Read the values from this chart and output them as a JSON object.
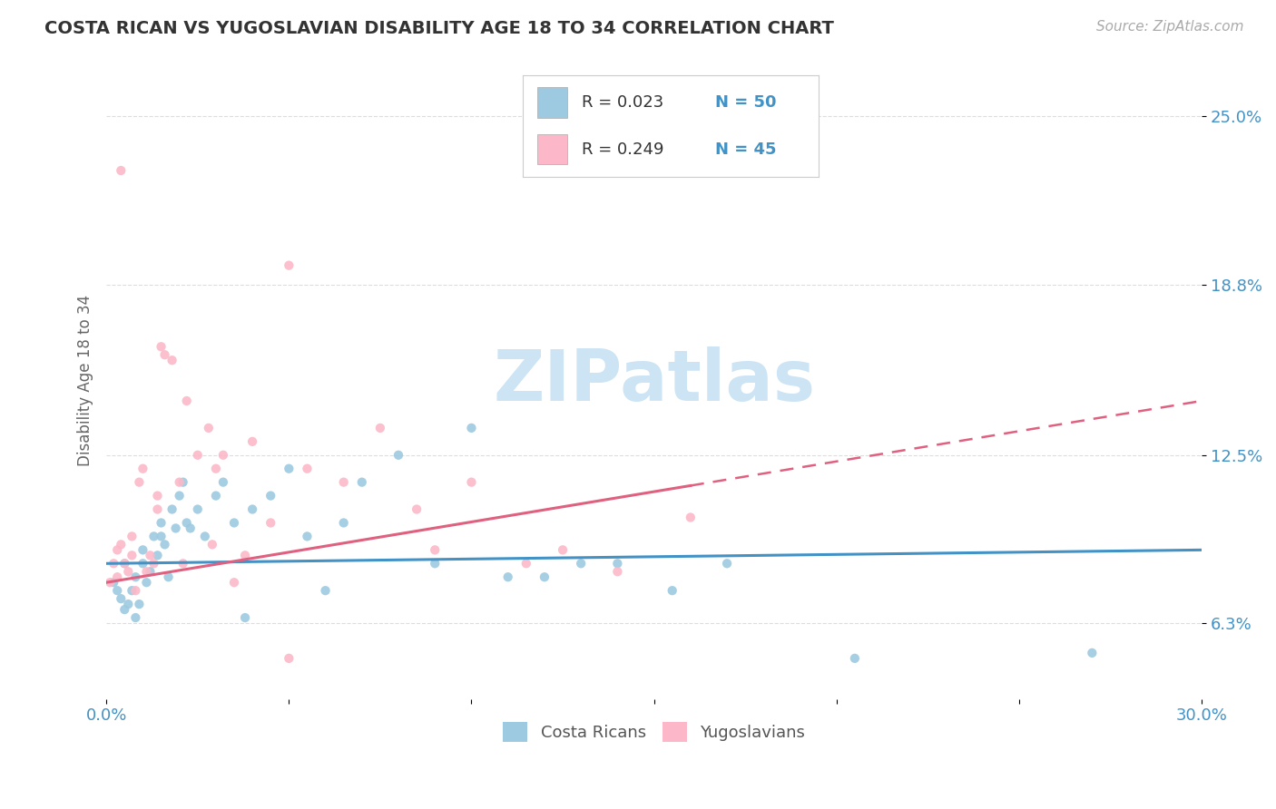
{
  "title": "COSTA RICAN VS YUGOSLAVIAN DISABILITY AGE 18 TO 34 CORRELATION CHART",
  "source": "Source: ZipAtlas.com",
  "ylabel": "Disability Age 18 to 34",
  "xlim": [
    0.0,
    30.0
  ],
  "ylim": [
    3.5,
    27.0
  ],
  "yticks": [
    6.3,
    12.5,
    18.8,
    25.0
  ],
  "ytick_labels": [
    "6.3%",
    "12.5%",
    "18.8%",
    "25.0%"
  ],
  "xticks": [
    0.0,
    5.0,
    10.0,
    15.0,
    20.0,
    25.0,
    30.0
  ],
  "xtick_labels": [
    "0.0%",
    "",
    "",
    "",
    "",
    "",
    "30.0%"
  ],
  "color_blue": "#9ecae1",
  "color_pink": "#fcb8c8",
  "color_blue_line": "#4292c6",
  "color_pink_line": "#e06080",
  "color_text": "#4292c6",
  "watermark_color": "#cde4f5",
  "background_color": "#ffffff",
  "grid_color": "#dddddd",
  "costa_rican_x": [
    0.2,
    0.3,
    0.4,
    0.5,
    0.5,
    0.6,
    0.7,
    0.8,
    0.8,
    0.9,
    1.0,
    1.0,
    1.1,
    1.2,
    1.3,
    1.4,
    1.5,
    1.5,
    1.6,
    1.7,
    1.8,
    1.9,
    2.0,
    2.1,
    2.2,
    2.3,
    2.5,
    2.7,
    3.0,
    3.2,
    3.5,
    4.0,
    4.5,
    5.0,
    5.5,
    6.0,
    6.5,
    7.0,
    8.0,
    9.0,
    10.0,
    11.0,
    12.0,
    13.0,
    14.0,
    15.5,
    17.0,
    20.5,
    27.0,
    3.8
  ],
  "costa_rican_y": [
    7.8,
    7.5,
    7.2,
    6.8,
    8.5,
    7.0,
    7.5,
    6.5,
    8.0,
    7.0,
    8.5,
    9.0,
    7.8,
    8.2,
    9.5,
    8.8,
    10.0,
    9.5,
    9.2,
    8.0,
    10.5,
    9.8,
    11.0,
    11.5,
    10.0,
    9.8,
    10.5,
    9.5,
    11.0,
    11.5,
    10.0,
    10.5,
    11.0,
    12.0,
    9.5,
    7.5,
    10.0,
    11.5,
    12.5,
    8.5,
    13.5,
    8.0,
    8.0,
    8.5,
    8.5,
    7.5,
    8.5,
    5.0,
    5.2,
    6.5
  ],
  "yugoslavian_x": [
    0.1,
    0.2,
    0.3,
    0.3,
    0.4,
    0.5,
    0.6,
    0.7,
    0.8,
    0.9,
    1.0,
    1.1,
    1.2,
    1.3,
    1.4,
    1.5,
    1.6,
    1.8,
    2.0,
    2.2,
    2.5,
    2.8,
    3.0,
    3.2,
    3.5,
    4.0,
    4.5,
    5.0,
    5.5,
    6.5,
    7.5,
    8.5,
    9.0,
    10.0,
    11.5,
    12.5,
    14.0,
    16.0,
    0.4,
    0.7,
    1.4,
    2.1,
    2.9,
    3.8,
    5.0
  ],
  "yugoslavian_y": [
    7.8,
    8.5,
    8.0,
    9.0,
    23.0,
    8.5,
    8.2,
    9.5,
    7.5,
    11.5,
    12.0,
    8.2,
    8.8,
    8.5,
    10.5,
    16.5,
    16.2,
    16.0,
    11.5,
    14.5,
    12.5,
    13.5,
    12.0,
    12.5,
    7.8,
    13.0,
    10.0,
    19.5,
    12.0,
    11.5,
    13.5,
    10.5,
    9.0,
    11.5,
    8.5,
    9.0,
    8.2,
    10.2,
    9.2,
    8.8,
    11.0,
    8.5,
    9.2,
    8.8,
    5.0
  ],
  "cr_trend_x0": 0.0,
  "cr_trend_y0": 8.5,
  "cr_trend_x1": 30.0,
  "cr_trend_y1": 9.0,
  "yu_trend_x0": 0.0,
  "yu_trend_y0": 7.8,
  "yu_trend_x1": 30.0,
  "yu_trend_y1": 14.5,
  "yu_dash_x0": 16.0,
  "yu_dash_x1": 30.0
}
